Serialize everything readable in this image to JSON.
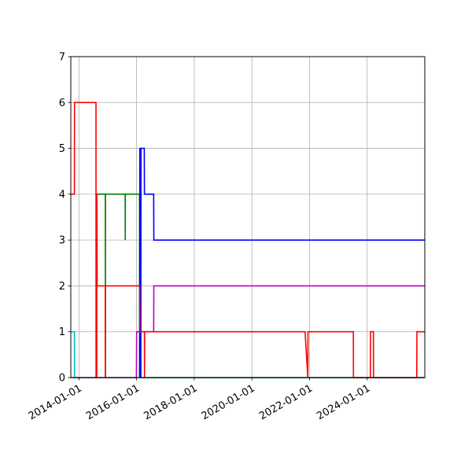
{
  "chart_data": {
    "type": "line",
    "title": "",
    "xlabel": "",
    "ylabel": "",
    "x_axis": "date",
    "xlim": [
      "2013-09-20",
      "2025-12-31"
    ],
    "ylim": [
      0,
      7
    ],
    "grid": true,
    "legend": false,
    "x_ticks": [
      "2014-01-01",
      "2016-01-01",
      "2018-01-01",
      "2020-01-01",
      "2022-01-01",
      "2024-01-01"
    ],
    "y_ticks": [
      "0",
      "1",
      "2",
      "3",
      "4",
      "5",
      "6",
      "7"
    ],
    "series": [
      {
        "color": "#00bfbf",
        "points": [
          [
            "2013-09-20",
            1
          ],
          [
            "2013-11-05",
            1
          ],
          [
            "2013-11-06",
            0
          ],
          [
            "2025-12-31",
            0
          ]
        ]
      },
      {
        "color": "#bf00bf",
        "points": [
          [
            "2013-09-20",
            0
          ],
          [
            "2015-12-30",
            0
          ],
          [
            "2016-01-02",
            1
          ],
          [
            "2016-08-05",
            1
          ],
          [
            "2016-08-07",
            2
          ],
          [
            "2025-12-31",
            2
          ]
        ]
      },
      {
        "color": "#008000",
        "points": [
          [
            "2014-08-10",
            0
          ],
          [
            "2014-08-11",
            4
          ],
          [
            "2014-12-01",
            4
          ],
          [
            "2014-12-02",
            0
          ],
          [
            "2014-12-03",
            4
          ],
          [
            "2015-08-10",
            4
          ],
          [
            "2015-08-11",
            3
          ],
          [
            "2015-08-12",
            4
          ],
          [
            "2016-02-08",
            4
          ],
          [
            "2016-02-09",
            0
          ],
          [
            "2025-12-31",
            0
          ]
        ]
      },
      {
        "color": "#0000ff",
        "points": [
          [
            "2016-02-10",
            0
          ],
          [
            "2016-02-12",
            5
          ],
          [
            "2016-02-22",
            5
          ],
          [
            "2016-02-24",
            0
          ],
          [
            "2016-02-26",
            5
          ],
          [
            "2016-04-08",
            5
          ],
          [
            "2016-04-10",
            4
          ],
          [
            "2016-08-05",
            4
          ],
          [
            "2016-08-07",
            3
          ],
          [
            "2025-12-31",
            3
          ]
        ]
      },
      {
        "color": "#ff0000",
        "points": [
          [
            "2013-09-20",
            4
          ],
          [
            "2013-11-05",
            4
          ],
          [
            "2013-11-06",
            6
          ],
          [
            "2014-08-05",
            6
          ],
          [
            "2014-08-06",
            0
          ],
          [
            "2014-08-15",
            0
          ],
          [
            "2014-08-16",
            4
          ],
          [
            "2014-08-20",
            2
          ],
          [
            "2014-12-01",
            2
          ],
          [
            "2014-12-02",
            0
          ],
          [
            "2014-12-03",
            2
          ],
          [
            "2016-02-10",
            2
          ],
          [
            "2016-02-12",
            1
          ],
          [
            "2016-04-10",
            1
          ],
          [
            "2016-04-11",
            0
          ],
          [
            "2016-04-12",
            1
          ],
          [
            "2021-11-05",
            1
          ],
          [
            "2021-12-10",
            0
          ],
          [
            "2021-12-12",
            1
          ],
          [
            "2023-07-10",
            1
          ],
          [
            "2023-07-11",
            0
          ],
          [
            "2024-02-10",
            0
          ],
          [
            "2024-02-12",
            1
          ],
          [
            "2024-03-20",
            1
          ],
          [
            "2024-03-21",
            0
          ],
          [
            "2025-09-20",
            0
          ],
          [
            "2025-09-22",
            1
          ],
          [
            "2025-12-31",
            1
          ]
        ]
      }
    ]
  }
}
